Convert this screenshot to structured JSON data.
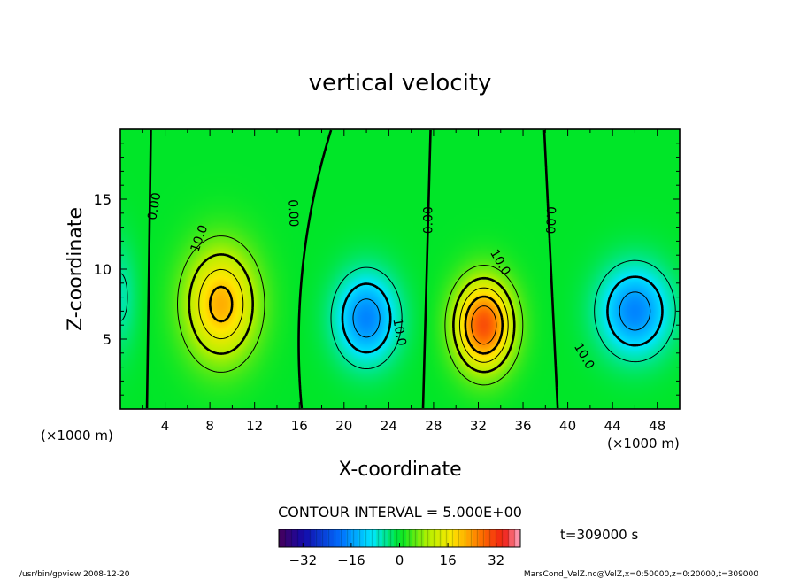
{
  "chart_data": {
    "type": "heatmap",
    "title": "vertical velocity",
    "xlabel": "X-coordinate",
    "ylabel": "Z-coordinate",
    "x_unit_left": "(×1000 m)",
    "x_unit_right": "(×1000 m)",
    "xlim": [
      0,
      50
    ],
    "ylim": [
      0,
      20
    ],
    "x_ticks": [
      4,
      8,
      12,
      16,
      20,
      24,
      28,
      32,
      36,
      40,
      44,
      48
    ],
    "y_ticks": [
      5,
      10,
      15
    ],
    "contour_interval_label": "CONTOUR INTERVAL = 5.000E+00",
    "colorbar": {
      "range": [
        -40,
        40
      ],
      "ticks": [
        -32,
        -16,
        0,
        16,
        32
      ]
    },
    "time_label": "t=309000 s",
    "cells": [
      {
        "x": 9,
        "z": 7.5,
        "amp": 22,
        "sx": 3.2,
        "sz": 4.0
      },
      {
        "x": 22,
        "z": 6.5,
        "amp": -18,
        "sx": 2.8,
        "sz": 3.2
      },
      {
        "x": 32.5,
        "z": 6,
        "amp": 30,
        "sx": 2.6,
        "sz": 3.2
      },
      {
        "x": 46,
        "z": 7,
        "amp": -18,
        "sx": 3.2,
        "sz": 3.2
      },
      {
        "x": 0,
        "z": 8,
        "amp": -6,
        "sx": 1.5,
        "sz": 4
      }
    ],
    "contour_labels": [
      {
        "text": "0.00",
        "x": 3,
        "z": 14.5,
        "rot": -80
      },
      {
        "text": "10.0",
        "x": 7,
        "z": 12.2,
        "rot": -70
      },
      {
        "text": "0.00",
        "x": 15.5,
        "z": 14,
        "rot": 88
      },
      {
        "text": "10.0",
        "x": 25,
        "z": 5.5,
        "rot": 80
      },
      {
        "text": "0.00",
        "x": 27.5,
        "z": 13.5,
        "rot": -90
      },
      {
        "text": "10.0",
        "x": 34,
        "z": 10.5,
        "rot": 60
      },
      {
        "text": "0.00",
        "x": 38.5,
        "z": 13.5,
        "rot": 92
      },
      {
        "text": "10.0",
        "x": 41.5,
        "z": 3.8,
        "rot": 60
      }
    ]
  },
  "footer": {
    "left": "/usr/bin/gpview  2008-12-20",
    "right": "MarsCond_VelZ.nc@VelZ,x=0:50000,z=0:20000,t=309000"
  }
}
